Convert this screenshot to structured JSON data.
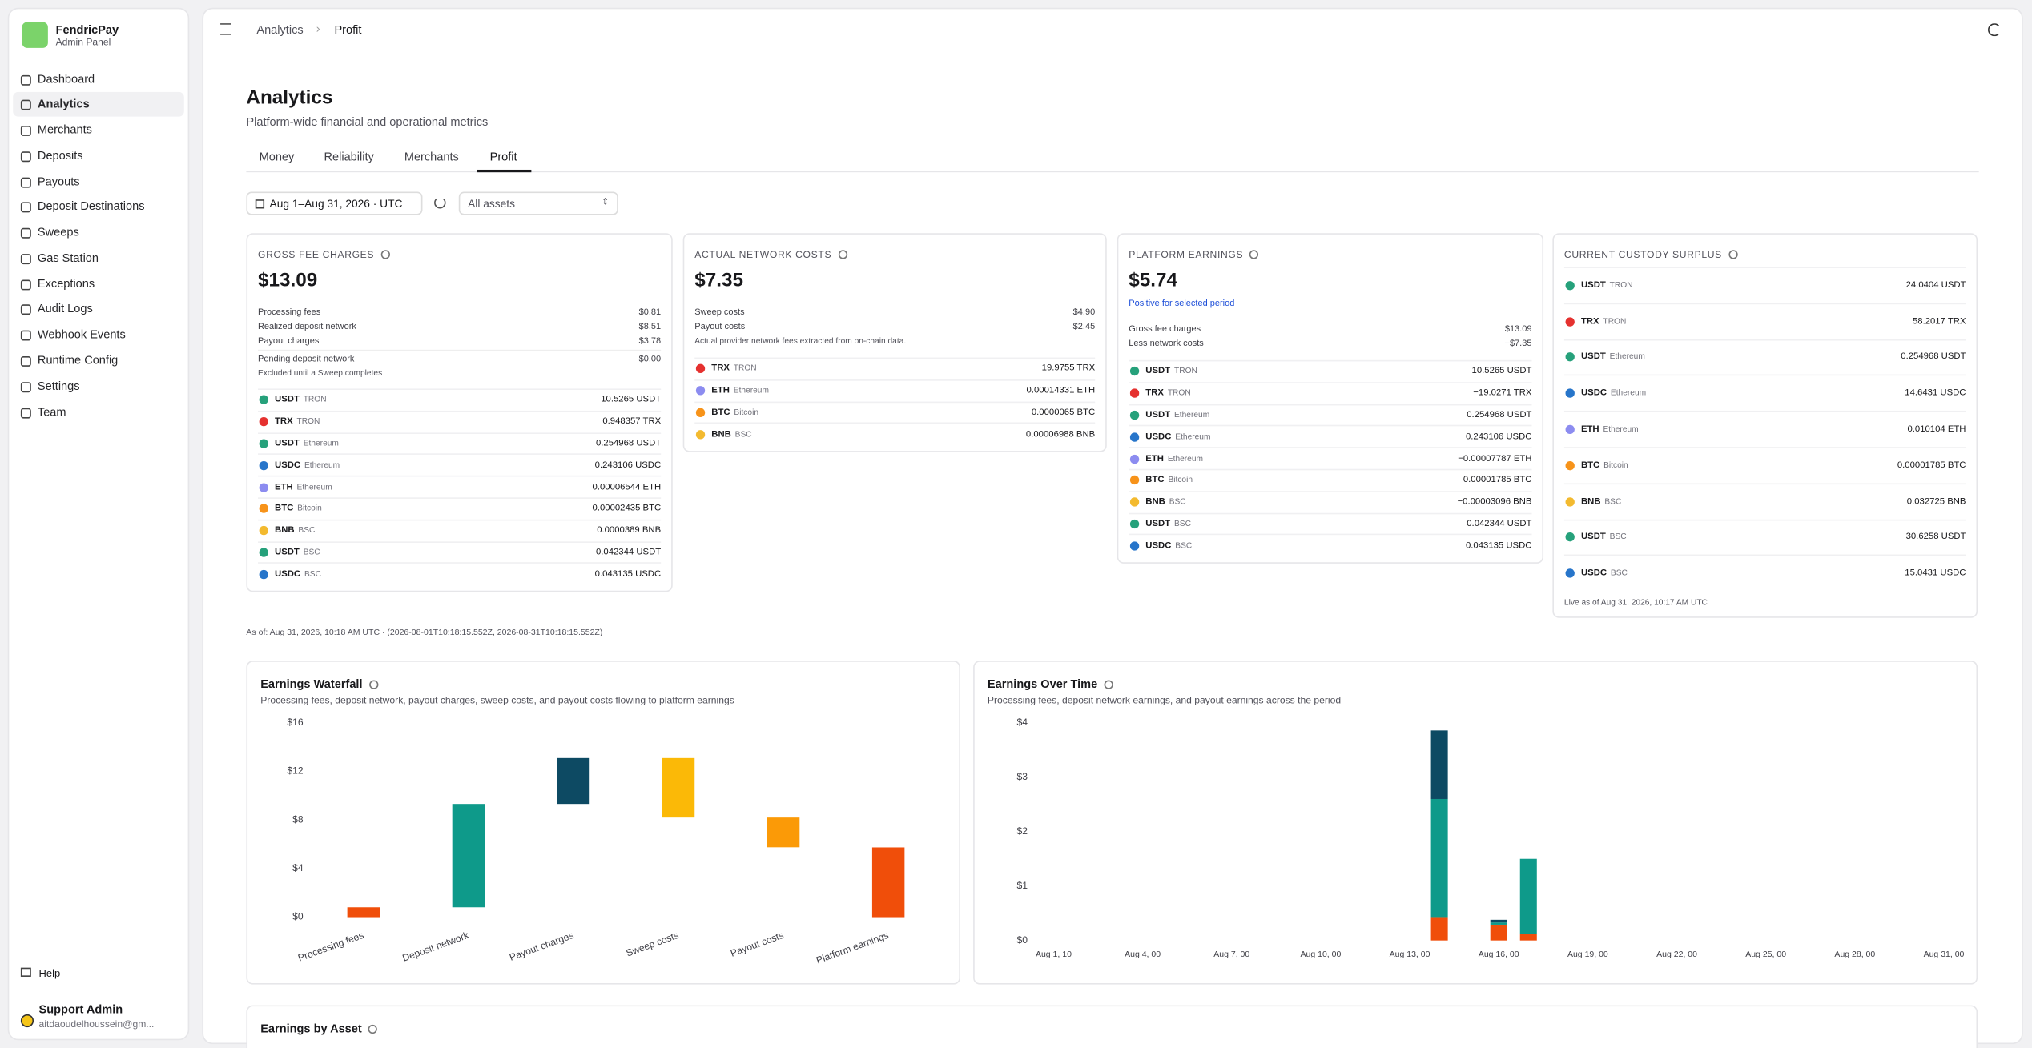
{
  "brand": {
    "name": "FendricPay",
    "subtitle": "Admin Panel"
  },
  "nav": [
    "Dashboard",
    "Analytics",
    "Merchants",
    "Deposits",
    "Payouts",
    "Deposit Destinations",
    "Sweeps",
    "Gas Station",
    "Exceptions",
    "Audit Logs",
    "Webhook Events",
    "Runtime Config",
    "Settings",
    "Team"
  ],
  "active_nav": 1,
  "help": "Help",
  "user": {
    "name": "Support Admin",
    "email": "aitdaoudelhoussein@gm..."
  },
  "breadcrumb": [
    "Analytics",
    "Profit"
  ],
  "page": {
    "title": "Analytics",
    "subtitle": "Platform-wide financial and operational metrics"
  },
  "tabs": [
    "Money",
    "Reliability",
    "Merchants",
    "Profit"
  ],
  "active_tab": 3,
  "filters": {
    "date": "Aug 1–Aug 31, 2026 · UTC",
    "asset": "All assets"
  },
  "cards": [
    {
      "title": "GROSS FEE CHARGES",
      "value": "$13.09",
      "breakdown": [
        {
          "label": "Processing fees",
          "value": "$0.81"
        },
        {
          "label": "Realized deposit network",
          "value": "$8.51"
        },
        {
          "label": "Payout charges",
          "value": "$3.78"
        }
      ],
      "pending": {
        "label": "Pending deposit network",
        "value": "$0.00",
        "note": "Excluded until a Sweep completes"
      },
      "assets": [
        {
          "symbol": "USDT",
          "chain": "TRON",
          "amount": "10.5265 USDT",
          "color": "#26a17b"
        },
        {
          "symbol": "TRX",
          "chain": "TRON",
          "amount": "0.948357 TRX",
          "color": "#e5312f"
        },
        {
          "symbol": "USDT",
          "chain": "Ethereum",
          "amount": "0.254968 USDT",
          "color": "#26a17b"
        },
        {
          "symbol": "USDC",
          "chain": "Ethereum",
          "amount": "0.243106 USDC",
          "color": "#2775ca"
        },
        {
          "symbol": "ETH",
          "chain": "Ethereum",
          "amount": "0.00006544 ETH",
          "color": "#8c8cf0"
        },
        {
          "symbol": "BTC",
          "chain": "Bitcoin",
          "amount": "0.00002435 BTC",
          "color": "#f7931a"
        },
        {
          "symbol": "BNB",
          "chain": "BSC",
          "amount": "0.0000389 BNB",
          "color": "#f3ba2f"
        },
        {
          "symbol": "USDT",
          "chain": "BSC",
          "amount": "0.042344 USDT",
          "color": "#26a17b"
        },
        {
          "symbol": "USDC",
          "chain": "BSC",
          "amount": "0.043135 USDC",
          "color": "#2775ca"
        }
      ]
    },
    {
      "title": "ACTUAL NETWORK COSTS",
      "value": "$7.35",
      "breakdown": [
        {
          "label": "Sweep costs",
          "value": "$4.90"
        },
        {
          "label": "Payout costs",
          "value": "$2.45"
        }
      ],
      "breakdown_note": "Actual provider network fees extracted from on-chain data.",
      "assets": [
        {
          "symbol": "TRX",
          "chain": "TRON",
          "amount": "19.9755 TRX",
          "color": "#e5312f"
        },
        {
          "symbol": "ETH",
          "chain": "Ethereum",
          "amount": "0.00014331 ETH",
          "color": "#8c8cf0"
        },
        {
          "symbol": "BTC",
          "chain": "Bitcoin",
          "amount": "0.0000065 BTC",
          "color": "#f7931a"
        },
        {
          "symbol": "BNB",
          "chain": "BSC",
          "amount": "0.00006988 BNB",
          "color": "#f3ba2f"
        }
      ]
    },
    {
      "title": "PLATFORM EARNINGS",
      "value": "$5.74",
      "value_note": "Positive for selected period",
      "breakdown": [
        {
          "label": "Gross fee charges",
          "value": "$13.09"
        },
        {
          "label": "Less network costs",
          "value": "−$7.35"
        }
      ],
      "assets": [
        {
          "symbol": "USDT",
          "chain": "TRON",
          "amount": "10.5265 USDT",
          "color": "#26a17b"
        },
        {
          "symbol": "TRX",
          "chain": "TRON",
          "amount": "−19.0271 TRX",
          "color": "#e5312f"
        },
        {
          "symbol": "USDT",
          "chain": "Ethereum",
          "amount": "0.254968 USDT",
          "color": "#26a17b"
        },
        {
          "symbol": "USDC",
          "chain": "Ethereum",
          "amount": "0.243106 USDC",
          "color": "#2775ca"
        },
        {
          "symbol": "ETH",
          "chain": "Ethereum",
          "amount": "−0.00007787 ETH",
          "color": "#8c8cf0"
        },
        {
          "symbol": "BTC",
          "chain": "Bitcoin",
          "amount": "0.00001785 BTC",
          "color": "#f7931a"
        },
        {
          "symbol": "BNB",
          "chain": "BSC",
          "amount": "−0.00003096 BNB",
          "color": "#f3ba2f"
        },
        {
          "symbol": "USDT",
          "chain": "BSC",
          "amount": "0.042344 USDT",
          "color": "#26a17b"
        },
        {
          "symbol": "USDC",
          "chain": "BSC",
          "amount": "0.043135 USDC",
          "color": "#2775ca"
        }
      ]
    },
    {
      "title": "CURRENT CUSTODY SURPLUS",
      "assets": [
        {
          "symbol": "USDT",
          "chain": "TRON",
          "amount": "24.0404 USDT",
          "color": "#26a17b"
        },
        {
          "symbol": "TRX",
          "chain": "TRON",
          "amount": "58.2017 TRX",
          "color": "#e5312f"
        },
        {
          "symbol": "USDT",
          "chain": "Ethereum",
          "amount": "0.254968 USDT",
          "color": "#26a17b"
        },
        {
          "symbol": "USDC",
          "chain": "Ethereum",
          "amount": "14.6431 USDC",
          "color": "#2775ca"
        },
        {
          "symbol": "ETH",
          "chain": "Ethereum",
          "amount": "0.010104 ETH",
          "color": "#8c8cf0"
        },
        {
          "symbol": "BTC",
          "chain": "Bitcoin",
          "amount": "0.00001785 BTC",
          "color": "#f7931a"
        },
        {
          "symbol": "BNB",
          "chain": "BSC",
          "amount": "0.032725 BNB",
          "color": "#f3ba2f"
        },
        {
          "symbol": "USDT",
          "chain": "BSC",
          "amount": "30.6258 USDT",
          "color": "#26a17b"
        },
        {
          "symbol": "USDC",
          "chain": "BSC",
          "amount": "15.0431 USDC",
          "color": "#2775ca"
        }
      ],
      "footer": "Live as of Aug 31, 2026, 10:17 AM UTC"
    }
  ],
  "as_of": "As of: Aug 31, 2026, 10:18 AM UTC · (2026-08-01T10:18:15.552Z, 2026-08-31T10:18:15.552Z)",
  "charts": [
    {
      "type": "waterfall",
      "title": "Earnings Waterfall",
      "subtitle": "Processing fees, deposit network, payout charges, sweep costs, and payout costs flowing to platform earnings",
      "categories": [
        "Processing fees",
        "Deposit network",
        "Payout charges",
        "Sweep costs",
        "Payout costs",
        "Platform earnings"
      ],
      "values": [
        0.81,
        8.51,
        3.78,
        -4.9,
        -2.45,
        5.74
      ],
      "colors": [
        "#f04e0a",
        "#0e9a8a",
        "#0d4a63",
        "#fbb907",
        "#fb9a07",
        "#f04e0a"
      ],
      "ylim": [
        0,
        16
      ],
      "yticks": [
        {
          "value": 0,
          "label": "$0"
        },
        {
          "value": 4,
          "label": "$4"
        },
        {
          "value": 8,
          "label": "$8"
        },
        {
          "value": 12,
          "label": "$12"
        },
        {
          "value": 16,
          "label": "$16"
        }
      ]
    },
    {
      "type": "stacked_bar",
      "title": "Earnings Over Time",
      "subtitle": "Processing fees, deposit network earnings, and payout earnings across the period",
      "x": [
        14,
        16,
        17
      ],
      "xlim": [
        1,
        31
      ],
      "xticks": [
        {
          "value": 1,
          "label": "Aug 1, 10"
        },
        {
          "value": 4,
          "label": "Aug 4, 00"
        },
        {
          "value": 7,
          "label": "Aug 7, 00"
        },
        {
          "value": 10,
          "label": "Aug 10, 00"
        },
        {
          "value": 13,
          "label": "Aug 13, 00"
        },
        {
          "value": 16,
          "label": "Aug 16, 00"
        },
        {
          "value": 19,
          "label": "Aug 19, 00"
        },
        {
          "value": 22,
          "label": "Aug 22, 00"
        },
        {
          "value": 25,
          "label": "Aug 25, 00"
        },
        {
          "value": 28,
          "label": "Aug 28, 00"
        },
        {
          "value": 31,
          "label": "Aug 31, 00"
        }
      ],
      "ylim": [
        0,
        4
      ],
      "yticks": [
        {
          "value": 0,
          "label": "$0"
        },
        {
          "value": 1,
          "label": "$1"
        },
        {
          "value": 2,
          "label": "$2"
        },
        {
          "value": 3,
          "label": "$3"
        },
        {
          "value": 4,
          "label": "$4"
        }
      ],
      "series": [
        {
          "color": "#f04e0a",
          "values": [
            0.43,
            0.29,
            0.12
          ]
        },
        {
          "color": "#0e9a8a",
          "values": [
            2.17,
            0.04,
            1.38
          ]
        },
        {
          "color": "#0d4a63",
          "values": [
            1.26,
            0.05,
            0
          ]
        }
      ]
    },
    {
      "type": "placeholder",
      "title": "Earnings by Asset"
    }
  ]
}
